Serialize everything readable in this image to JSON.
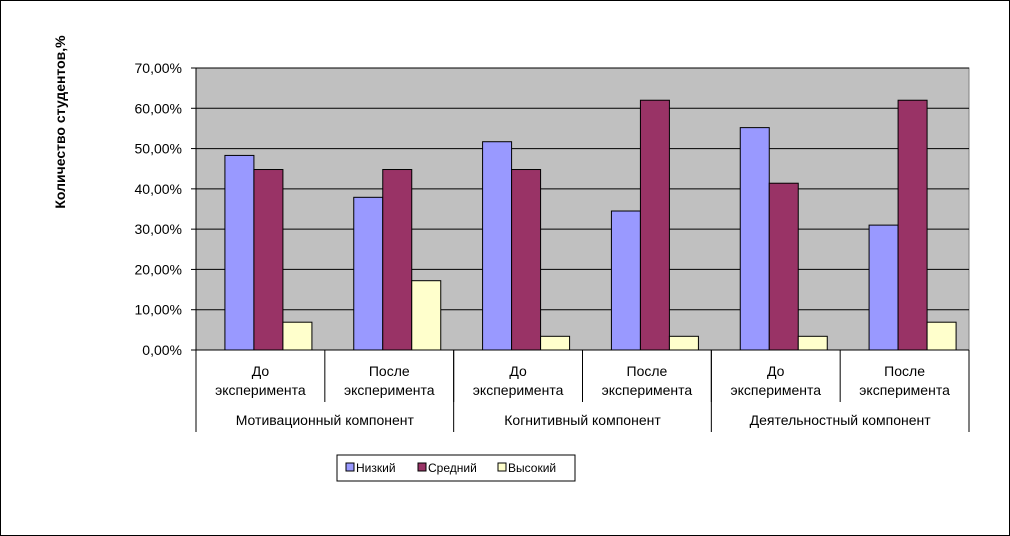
{
  "chart_data": {
    "type": "bar",
    "ylabel": "Количество студентов,%",
    "xlabel": "",
    "title": "",
    "ylim": [
      0,
      70
    ],
    "yticks": [
      "0,00%",
      "10,00%",
      "20,00%",
      "30,00%",
      "40,00%",
      "50,00%",
      "60,00%",
      "70,00%"
    ],
    "groups": [
      "Мотивационный  компонент",
      "Когнитивный  компонент",
      "Деятельностный компонент"
    ],
    "categories": [
      [
        "До",
        "эксперимента"
      ],
      [
        "После",
        "эксперимента"
      ],
      [
        "До",
        "эксперимента"
      ],
      [
        "После",
        "эксперимента"
      ],
      [
        "До",
        "эксперимента"
      ],
      [
        "После",
        "эксперимента"
      ]
    ],
    "series": [
      {
        "name": "Низкий",
        "color": "#9999ff",
        "values": [
          48.3,
          37.9,
          51.7,
          34.5,
          55.2,
          31.0
        ]
      },
      {
        "name": "Средний",
        "color": "#993366",
        "values": [
          44.8,
          44.8,
          44.8,
          62.0,
          41.4,
          62.0
        ]
      },
      {
        "name": "Высокий",
        "color": "#ffffcc",
        "values": [
          6.9,
          17.2,
          3.4,
          3.4,
          3.4,
          6.9
        ]
      }
    ],
    "grid": true,
    "legend": "bottom",
    "plot_background": "#c0c0c0"
  }
}
